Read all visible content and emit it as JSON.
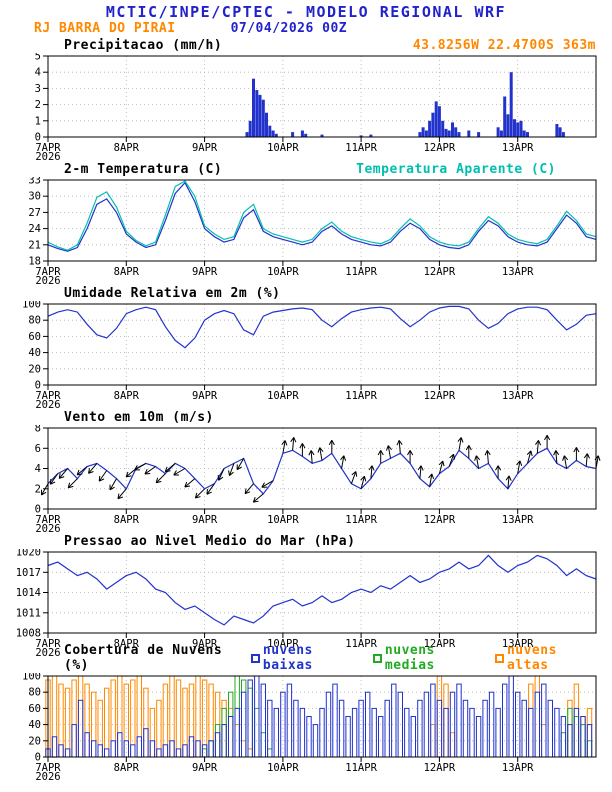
{
  "header": {
    "title": "MCTIC/INPE/CPTEC - MODELO REGIONAL WRF",
    "station": "RJ BARRA DO PIRAI",
    "run": "07/04/2026 00Z",
    "location": "43.8256W 22.4700S 363m"
  },
  "colors": {
    "title_blue": "#2222cc",
    "orange": "#ff8800",
    "blue": "#2233cc",
    "cyan": "#00bfb0",
    "green": "#22aa22",
    "black": "#000000",
    "grid": "#aaaaaa"
  },
  "x_axis": {
    "min": 0,
    "max": 168,
    "ticks": [
      {
        "h": 0,
        "label": "7APR",
        "sub": "2026"
      },
      {
        "h": 24,
        "label": "8APR"
      },
      {
        "h": 48,
        "label": "9APR"
      },
      {
        "h": 72,
        "label": "10APR"
      },
      {
        "h": 96,
        "label": "11APR"
      },
      {
        "h": 120,
        "label": "12APR"
      },
      {
        "h": 144,
        "label": "13APR"
      }
    ]
  },
  "chart_data": [
    {
      "id": "precipitation",
      "type": "bar",
      "title": "Precipitacao (mm/h)",
      "ylim": [
        0,
        5
      ],
      "yticks": [
        0,
        1,
        2,
        3,
        4,
        5
      ],
      "bar_color": "blue",
      "bars": [
        [
          61,
          0.3
        ],
        [
          62,
          1.0
        ],
        [
          63,
          3.6
        ],
        [
          64,
          2.9
        ],
        [
          65,
          2.6
        ],
        [
          66,
          2.3
        ],
        [
          67,
          1.5
        ],
        [
          68,
          0.7
        ],
        [
          69,
          0.4
        ],
        [
          70,
          0.2
        ],
        [
          75,
          0.3
        ],
        [
          78,
          0.4
        ],
        [
          79,
          0.2
        ],
        [
          84,
          0.15
        ],
        [
          96,
          0.1
        ],
        [
          99,
          0.15
        ],
        [
          114,
          0.3
        ],
        [
          115,
          0.6
        ],
        [
          116,
          0.4
        ],
        [
          117,
          1.0
        ],
        [
          118,
          1.5
        ],
        [
          119,
          2.2
        ],
        [
          120,
          1.9
        ],
        [
          121,
          1.0
        ],
        [
          122,
          0.5
        ],
        [
          123,
          0.4
        ],
        [
          124,
          0.9
        ],
        [
          125,
          0.6
        ],
        [
          126,
          0.3
        ],
        [
          129,
          0.4
        ],
        [
          132,
          0.3
        ],
        [
          138,
          0.6
        ],
        [
          139,
          0.4
        ],
        [
          140,
          2.5
        ],
        [
          141,
          1.4
        ],
        [
          142,
          4.0
        ],
        [
          143,
          1.1
        ],
        [
          144,
          0.9
        ],
        [
          145,
          1.0
        ],
        [
          146,
          0.4
        ],
        [
          147,
          0.3
        ],
        [
          156,
          0.8
        ],
        [
          157,
          0.6
        ],
        [
          158,
          0.3
        ]
      ]
    },
    {
      "id": "temperature",
      "type": "line",
      "title": "2-m Temperatura (C)",
      "right_label": "Temperatura Aparente (C)",
      "ylim": [
        18,
        33
      ],
      "yticks": [
        18,
        21,
        24,
        27,
        30,
        33
      ],
      "step": 3,
      "series": [
        {
          "name": "2-m Temperatura",
          "color": "blue",
          "values": [
            21.0,
            20.3,
            19.8,
            20.5,
            24.0,
            28.5,
            29.5,
            27.0,
            23.0,
            21.5,
            20.5,
            21.0,
            25.5,
            30.5,
            32.5,
            29.0,
            24.0,
            22.5,
            21.5,
            22.0,
            26.0,
            27.5,
            23.5,
            22.5,
            22.0,
            21.5,
            21.0,
            21.5,
            23.5,
            24.5,
            23.0,
            22.0,
            21.5,
            21.0,
            20.8,
            21.5,
            23.5,
            25.0,
            24.0,
            22.0,
            21.0,
            20.5,
            20.3,
            21.0,
            23.5,
            25.5,
            24.5,
            22.5,
            21.5,
            21.0,
            20.8,
            21.5,
            24.0,
            26.5,
            25.0,
            22.5,
            22.0
          ]
        },
        {
          "name": "Temperatura Aparente",
          "color": "cyan",
          "values": [
            21.5,
            20.6,
            20.0,
            21.0,
            25.0,
            29.8,
            30.8,
            28.0,
            23.5,
            21.8,
            20.8,
            21.5,
            26.5,
            31.8,
            32.8,
            30.0,
            24.5,
            23.0,
            22.0,
            22.5,
            27.0,
            28.5,
            24.0,
            23.0,
            22.5,
            22.0,
            21.5,
            22.0,
            24.0,
            25.2,
            23.5,
            22.5,
            22.0,
            21.5,
            21.2,
            22.0,
            24.0,
            25.8,
            24.5,
            22.5,
            21.5,
            21.0,
            20.8,
            21.5,
            24.0,
            26.2,
            25.0,
            23.0,
            22.0,
            21.5,
            21.2,
            22.0,
            24.5,
            27.2,
            25.5,
            23.0,
            22.5
          ]
        }
      ]
    },
    {
      "id": "humidity",
      "type": "line",
      "title": "Umidade Relativa em 2m (%)",
      "ylim": [
        0,
        100
      ],
      "yticks": [
        0,
        20,
        40,
        60,
        80,
        100
      ],
      "step": 3,
      "series": [
        {
          "name": "Umidade Relativa",
          "color": "blue",
          "values": [
            85,
            90,
            93,
            90,
            75,
            62,
            58,
            70,
            88,
            93,
            96,
            93,
            72,
            55,
            46,
            58,
            80,
            88,
            92,
            88,
            68,
            62,
            85,
            90,
            92,
            94,
            95,
            93,
            80,
            72,
            82,
            90,
            93,
            95,
            96,
            94,
            82,
            72,
            80,
            90,
            95,
            97,
            97,
            94,
            80,
            70,
            76,
            88,
            94,
            96,
            96,
            93,
            80,
            68,
            75,
            86,
            88
          ]
        }
      ]
    },
    {
      "id": "wind",
      "type": "line",
      "title": "Vento em 10m (m/s)",
      "ylim": [
        0,
        8
      ],
      "yticks": [
        0,
        2,
        4,
        6,
        8
      ],
      "step": 3,
      "series": [
        {
          "name": "Vento 10m",
          "color": "blue",
          "values": [
            2.5,
            3.5,
            4.0,
            3.0,
            4.2,
            4.5,
            3.8,
            3.0,
            2.0,
            4.0,
            4.5,
            4.2,
            3.5,
            4.5,
            4.0,
            3.0,
            2.0,
            2.5,
            4.0,
            4.5,
            5.0,
            2.5,
            1.5,
            2.8,
            5.5,
            5.8,
            5.2,
            4.5,
            4.8,
            5.5,
            4.0,
            2.5,
            2.0,
            3.0,
            4.5,
            5.0,
            5.5,
            4.5,
            3.0,
            2.2,
            3.5,
            4.2,
            5.8,
            5.0,
            4.0,
            4.5,
            3.0,
            2.0,
            3.5,
            4.5,
            5.5,
            6.0,
            4.5,
            4.0,
            4.8,
            4.2,
            4.0
          ]
        }
      ],
      "arrows": {
        "dirs": [
          210,
          215,
          220,
          225,
          230,
          220,
          215,
          210,
          220,
          230,
          240,
          235,
          225,
          230,
          240,
          230,
          225,
          215,
          205,
          200,
          210,
          220,
          230,
          240,
          10,
          5,
          0,
          355,
          350,
          0,
          10,
          20,
          15,
          5,
          0,
          350,
          355,
          0,
          5,
          10,
          15,
          20,
          10,
          0,
          350,
          355,
          0,
          5,
          10,
          15,
          5,
          0,
          355,
          350,
          0,
          5,
          10
        ]
      }
    },
    {
      "id": "pressure",
      "type": "line",
      "title": "Pressao ao Nivel Medio do Mar (hPa)",
      "ylim": [
        1008,
        1020
      ],
      "yticks": [
        1008,
        1011,
        1014,
        1017,
        1020
      ],
      "step": 3,
      "series": [
        {
          "name": "Pressao",
          "color": "blue",
          "values": [
            1018.0,
            1018.5,
            1017.5,
            1016.5,
            1017.0,
            1016.0,
            1014.5,
            1015.5,
            1016.5,
            1017.0,
            1016.0,
            1014.5,
            1014.0,
            1012.5,
            1011.5,
            1012.0,
            1011.0,
            1010.0,
            1009.2,
            1010.5,
            1010.0,
            1009.5,
            1010.5,
            1012.0,
            1012.5,
            1013.0,
            1012.0,
            1012.5,
            1013.5,
            1012.5,
            1013.0,
            1014.0,
            1014.5,
            1014.0,
            1015.0,
            1014.5,
            1015.5,
            1016.5,
            1015.5,
            1016.0,
            1017.0,
            1017.5,
            1018.5,
            1017.5,
            1018.0,
            1019.5,
            1018.0,
            1017.0,
            1018.0,
            1018.5,
            1019.5,
            1019.0,
            1018.0,
            1016.5,
            1017.5,
            1016.5,
            1016.0
          ]
        }
      ]
    },
    {
      "id": "clouds",
      "type": "cloudbar",
      "title": "Cobertura de Nuvens (%)",
      "ylim": [
        0,
        100
      ],
      "yticks": [
        0,
        20,
        40,
        60,
        80,
        100
      ],
      "step": 2,
      "legend": [
        {
          "label": "nuvens baixas",
          "color": "blue"
        },
        {
          "label": "nuvens medias",
          "color": "green"
        },
        {
          "label": "nuvens altas",
          "color": "orange"
        }
      ],
      "cloud_series": [
        {
          "name": "nuvens altas",
          "color": "orange",
          "values": [
            95,
            100,
            90,
            85,
            95,
            100,
            90,
            80,
            70,
            85,
            95,
            100,
            90,
            95,
            100,
            85,
            60,
            70,
            90,
            100,
            95,
            85,
            90,
            100,
            95,
            90,
            80,
            70,
            60,
            40,
            20,
            10,
            0,
            0,
            0,
            0,
            0,
            0,
            0,
            0,
            0,
            0,
            0,
            0,
            0,
            0,
            0,
            0,
            0,
            0,
            0,
            0,
            0,
            0,
            0,
            0,
            0,
            0,
            0,
            40,
            100,
            90,
            30,
            0,
            0,
            0,
            0,
            0,
            0,
            0,
            0,
            0,
            0,
            0,
            90,
            100,
            40,
            0,
            0,
            0,
            70,
            90,
            50,
            60
          ]
        },
        {
          "name": "nuvens medias",
          "color": "green",
          "values": [
            0,
            0,
            0,
            0,
            0,
            0,
            0,
            0,
            0,
            0,
            0,
            0,
            0,
            0,
            0,
            0,
            0,
            0,
            0,
            0,
            0,
            0,
            0,
            0,
            10,
            20,
            40,
            60,
            80,
            100,
            95,
            85,
            60,
            30,
            10,
            0,
            0,
            0,
            0,
            0,
            0,
            0,
            0,
            0,
            0,
            0,
            0,
            0,
            0,
            0,
            0,
            0,
            0,
            0,
            0,
            0,
            0,
            0,
            0,
            0,
            0,
            0,
            0,
            0,
            0,
            0,
            0,
            0,
            0,
            0,
            0,
            0,
            0,
            0,
            0,
            0,
            0,
            0,
            0,
            30,
            60,
            50,
            40,
            20
          ]
        },
        {
          "name": "nuvens baixas",
          "color": "blue",
          "values": [
            10,
            25,
            15,
            10,
            40,
            70,
            30,
            20,
            15,
            10,
            20,
            30,
            20,
            15,
            25,
            35,
            20,
            10,
            15,
            20,
            10,
            15,
            25,
            20,
            15,
            20,
            30,
            40,
            50,
            60,
            80,
            95,
            100,
            90,
            70,
            60,
            80,
            90,
            70,
            60,
            50,
            40,
            60,
            80,
            90,
            70,
            50,
            60,
            70,
            80,
            60,
            50,
            70,
            90,
            80,
            60,
            50,
            70,
            80,
            90,
            70,
            60,
            80,
            90,
            70,
            60,
            50,
            70,
            80,
            60,
            90,
            100,
            80,
            70,
            60,
            80,
            90,
            70,
            60,
            50,
            40,
            60,
            50,
            40
          ]
        }
      ]
    }
  ]
}
